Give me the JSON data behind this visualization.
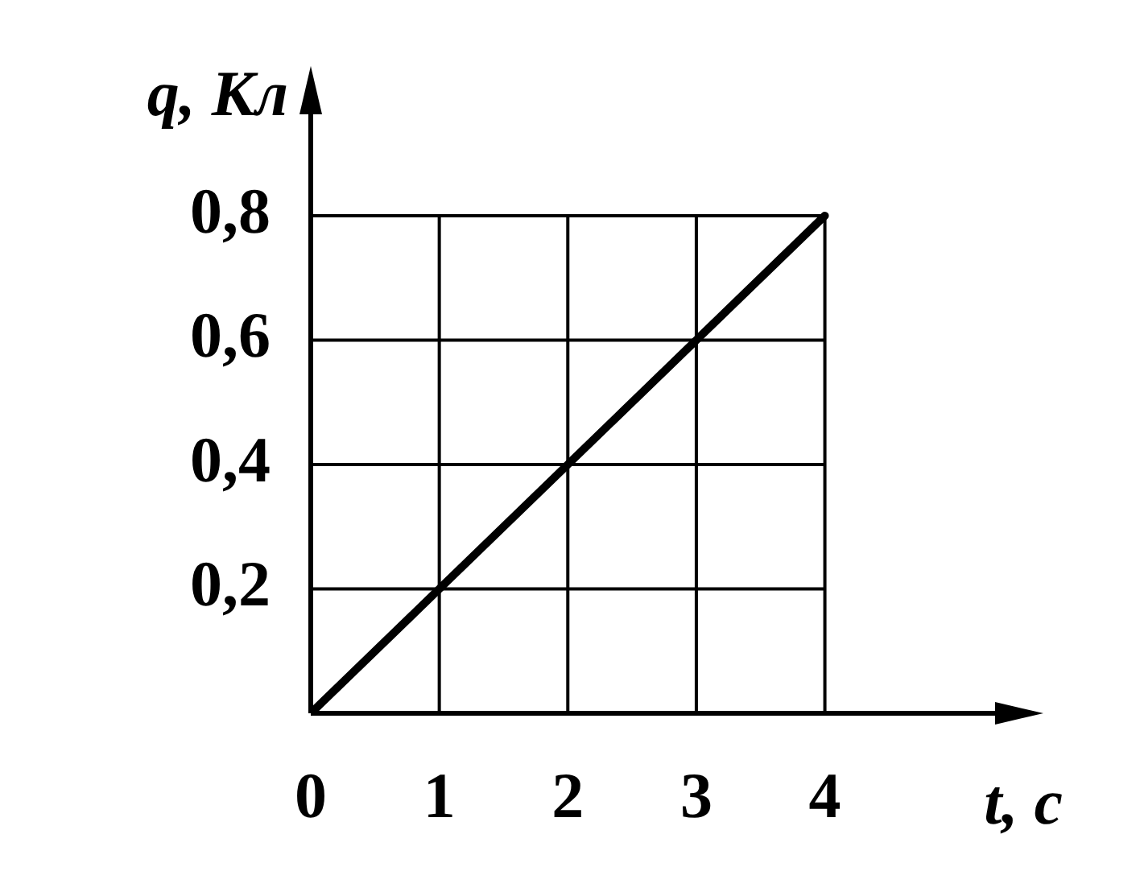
{
  "chart_data": {
    "type": "line",
    "xlabel": "t, с",
    "ylabel": "q, Кл",
    "x": [
      0,
      4
    ],
    "series": [
      {
        "color": "#000000",
        "values": [
          0,
          0.8
        ]
      }
    ],
    "xlim": [
      0,
      5.6
    ],
    "ylim": [
      0,
      1.02
    ],
    "xticks": [
      0,
      1,
      2,
      3,
      4
    ],
    "yticks": [
      {
        "value": 0,
        "label": null
      },
      {
        "value": 0.2,
        "label": "0,2"
      },
      {
        "value": 0.4,
        "label": "0,4"
      },
      {
        "value": 0.6,
        "label": "0,6"
      },
      {
        "value": 0.8,
        "label": "0,8"
      }
    ],
    "grid": true,
    "legend": false,
    "marker": "none",
    "line_style": "solid"
  }
}
